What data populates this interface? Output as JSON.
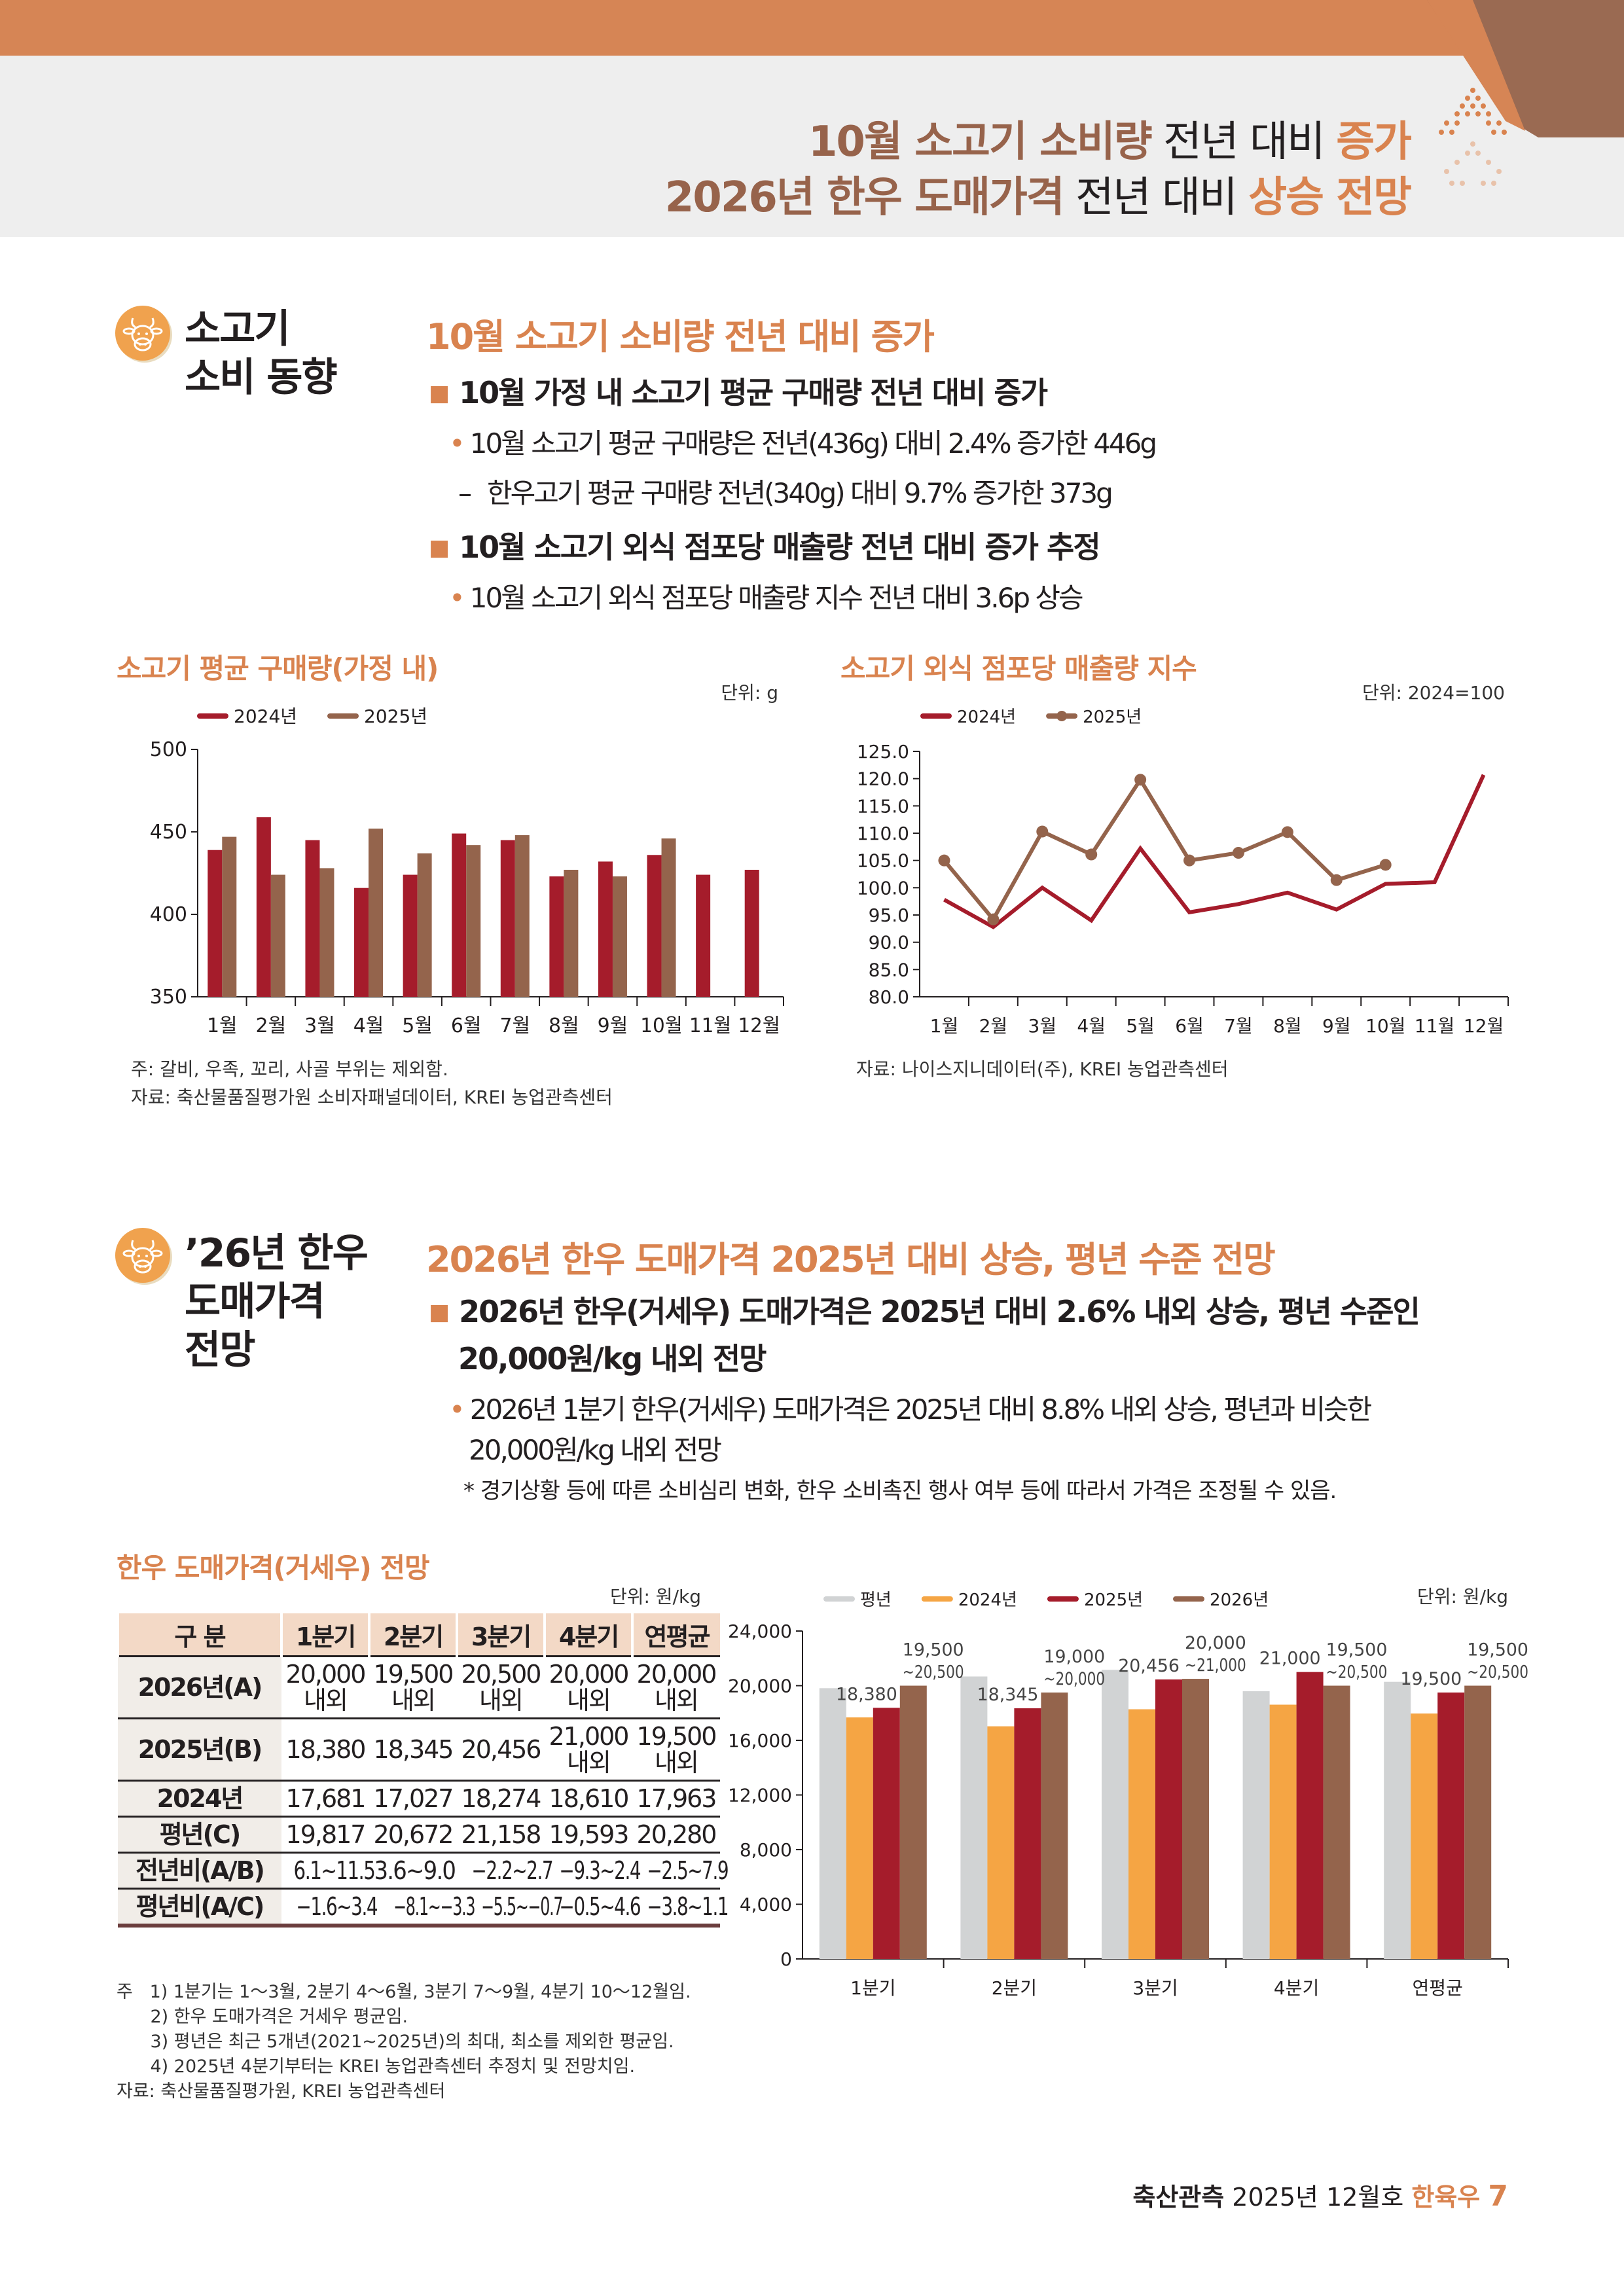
{
  "header": {
    "line1": {
      "a": "10월 소고기 소비량",
      "b": " 전년 대비 ",
      "c": "증가"
    },
    "line2": {
      "a": "2026년 한우 도매가격",
      "b": " 전년 대비 ",
      "c": "상승 전망"
    }
  },
  "section1": {
    "icon": "cow-icon",
    "title_line1": "소고기",
    "title_line2": "소비 동향",
    "heading": "10월 소고기 소비량 전년 대비 증가",
    "bullets": [
      {
        "text": "10월 가정 내 소고기 평균 구매량 전년 대비 증가",
        "subs": [
          "10월 소고기 평균 구매량은 전년(436g) 대비 2.4% 증가한 446g"
        ],
        "dash": [
          "한우고기 평균 구매량 전년(340g) 대비 9.7% 증가한 373g"
        ]
      },
      {
        "text": "10월 소고기 외식 점포당 매출량 전년 대비 증가 추정",
        "subs": [
          "10월 소고기 외식 점포당 매출량 지수 전년 대비 3.6p 상승"
        ]
      }
    ],
    "bullet_marker": "■",
    "sub_marker": "•",
    "dash_marker": "–",
    "chart1_note": "주: 갈비, 우족, 꼬리, 사골 부위는 제외함.",
    "chart1_source": "자료: 축산물품질평가원 소비자패널데이터, KREI 농업관측센터",
    "chart2_source": "자료: 나이스지니데이터(주), KREI 농업관측센터"
  },
  "section2": {
    "icon": "cow-icon",
    "title_lines": [
      "’26년 한우",
      "도매가격",
      "전망"
    ],
    "heading": "2026년 한우 도매가격 2025년 대비 상승, 평년 수준 전망",
    "bullet_line1": "2026년 한우(거세우) 도매가격은 2025년 대비 2.6% 내외 상승, 평년 수준인",
    "bullet_line2": "20,000원/kg 내외 전망",
    "sub_line1": "2026년 1분기 한우(거세우) 도매가격은 2025년 대비 8.8% 내외 상승, 평년과 비슷한",
    "sub_line2": "20,000원/kg 내외 전망",
    "asterisk_note": "* 경기상황 등에 따른 소비심리 변화, 한우 소비촉진 행사 여부 등에 따라서 가격은 조정될 수 있음."
  },
  "table": {
    "title": "한우 도매가격(거세우) 전망",
    "unit": "단위: 원/kg",
    "headers": [
      "구 분",
      "1분기",
      "2분기",
      "3분기",
      "4분기",
      "연평균"
    ],
    "rows": [
      {
        "label": "2026년(A)",
        "cells": [
          [
            "20,000",
            "내외"
          ],
          [
            "19,500",
            "내외"
          ],
          [
            "20,500",
            "내외"
          ],
          [
            "20,000",
            "내외"
          ],
          [
            "20,000",
            "내외"
          ]
        ]
      },
      {
        "label": "2025년(B)",
        "cells": [
          [
            "18,380"
          ],
          [
            "18,345"
          ],
          [
            "20,456"
          ],
          [
            "21,000",
            "내외"
          ],
          [
            "19,500",
            "내외"
          ]
        ]
      },
      {
        "label": "2024년",
        "cells": [
          [
            "17,681"
          ],
          [
            "17,027"
          ],
          [
            "18,274"
          ],
          [
            "18,610"
          ],
          [
            "17,963"
          ]
        ]
      },
      {
        "label": "평년(C)",
        "cells": [
          [
            "19,817"
          ],
          [
            "20,672"
          ],
          [
            "21,158"
          ],
          [
            "19,593"
          ],
          [
            "20,280"
          ]
        ]
      },
      {
        "label": "전년비(A/B)",
        "cells": [
          [
            "6.1~11.5"
          ],
          [
            "3.6~9.0"
          ],
          [
            "−2.2~2.7"
          ],
          [
            "−9.3~2.4"
          ],
          [
            "−2.5~7.9"
          ]
        ]
      },
      {
        "label": "평년비(A/C)",
        "cells": [
          [
            "−1.6~3.4"
          ],
          [
            "−8.1~−3.3"
          ],
          [
            "−5.5~−0.7"
          ],
          [
            "−0.5~4.6"
          ],
          [
            "−3.8~1.1"
          ]
        ]
      }
    ],
    "notes": [
      "주   1) 1분기는 1～3월, 2분기 4～6월, 3분기 7～9월, 4분기 10～12월임.",
      "      2) 한우 도매가격은 거세우 평균임.",
      "      3) 평년은 최근 5개년(2021~2025년)의 최대, 최소를 제외한 평균임.",
      "      4) 2025년 4분기부터는 KREI 농업관측센터 추정치 및 전망치임.",
      "자료: 축산물품질평가원, KREI 농업관측센터"
    ]
  },
  "footer": {
    "a": "축산관측",
    "b": " 2025년 12월호 ",
    "c": "한육우",
    "page": "7"
  },
  "chart_data": [
    {
      "type": "bar",
      "title": "소고기 평균 구매량(가정 내)",
      "unit": "단위: g",
      "categories": [
        "1월",
        "2월",
        "3월",
        "4월",
        "5월",
        "6월",
        "7월",
        "8월",
        "9월",
        "10월",
        "11월",
        "12월"
      ],
      "series": [
        {
          "name": "2024년",
          "color": "#a51c2b",
          "values": [
            439,
            459,
            445,
            416,
            424,
            449,
            445,
            423,
            432,
            436,
            424,
            427
          ]
        },
        {
          "name": "2025년",
          "color": "#94644c",
          "values": [
            447,
            424,
            428,
            452,
            437,
            442,
            448,
            427,
            423,
            446,
            null,
            null
          ]
        }
      ],
      "ylim": [
        350,
        500
      ],
      "yticks": [
        "350",
        "400",
        "450",
        "500"
      ],
      "legend": "top-left"
    },
    {
      "type": "line",
      "title": "소고기 외식 점포당 매출량 지수",
      "unit": "단위: 2024=100",
      "categories": [
        "1월",
        "2월",
        "3월",
        "4월",
        "5월",
        "6월",
        "7월",
        "8월",
        "9월",
        "10월",
        "11월",
        "12월"
      ],
      "series": [
        {
          "name": "2024년",
          "color": "#a51c2b",
          "markers": false,
          "values": [
            97.8,
            92.8,
            100.0,
            94.0,
            107.2,
            95.5,
            97.0,
            99.1,
            96.0,
            100.7,
            101.0,
            120.7
          ]
        },
        {
          "name": "2025년",
          "color": "#94644c",
          "markers": true,
          "values": [
            105.0,
            94.2,
            110.3,
            106.1,
            119.8,
            105.0,
            106.4,
            110.2,
            101.4,
            104.2,
            null,
            null
          ]
        }
      ],
      "ylim": [
        80,
        125
      ],
      "yticks": [
        "80.0",
        "85.0",
        "90.0",
        "95.0",
        "100.0",
        "105.0",
        "110.0",
        "115.0",
        "120.0",
        "125.0"
      ],
      "legend": "top-left"
    },
    {
      "type": "bar",
      "title": "한우 도매가격(거세우) 전망",
      "unit": "단위: 원/kg",
      "categories": [
        "1분기",
        "2분기",
        "3분기",
        "4분기",
        "연평균"
      ],
      "series": [
        {
          "name": "평년",
          "color": "#d1d3d4",
          "values": [
            19817,
            20672,
            21158,
            19593,
            20280
          ],
          "labels": null
        },
        {
          "name": "2024년",
          "color": "#f5a544",
          "values": [
            17681,
            17027,
            18274,
            18610,
            17963
          ],
          "labels": null
        },
        {
          "name": "2025년",
          "color": "#a51c2b",
          "values": [
            18380,
            18345,
            20456,
            21000,
            19500
          ],
          "labels": [
            [
              "18,380"
            ],
            [
              "18,345"
            ],
            [
              "20,456"
            ],
            [
              "21,000"
            ],
            [
              "19,500"
            ]
          ]
        },
        {
          "name": "2026년",
          "color": "#94644c",
          "values": [
            20000,
            19500,
            20500,
            20000,
            20000
          ],
          "labels": [
            [
              "19,500",
              "~20,500"
            ],
            [
              "19,000",
              "~20,000"
            ],
            [
              "20,000",
              "~21,000"
            ],
            [
              "19,500",
              "~20,500"
            ],
            [
              "19,500",
              "~20,500"
            ]
          ]
        }
      ],
      "ylim": [
        0,
        24000
      ],
      "yticks": [
        "0",
        "4,000",
        "8,000",
        "12,000",
        "16,000",
        "20,000",
        "24,000"
      ],
      "legend": "top-left"
    }
  ]
}
